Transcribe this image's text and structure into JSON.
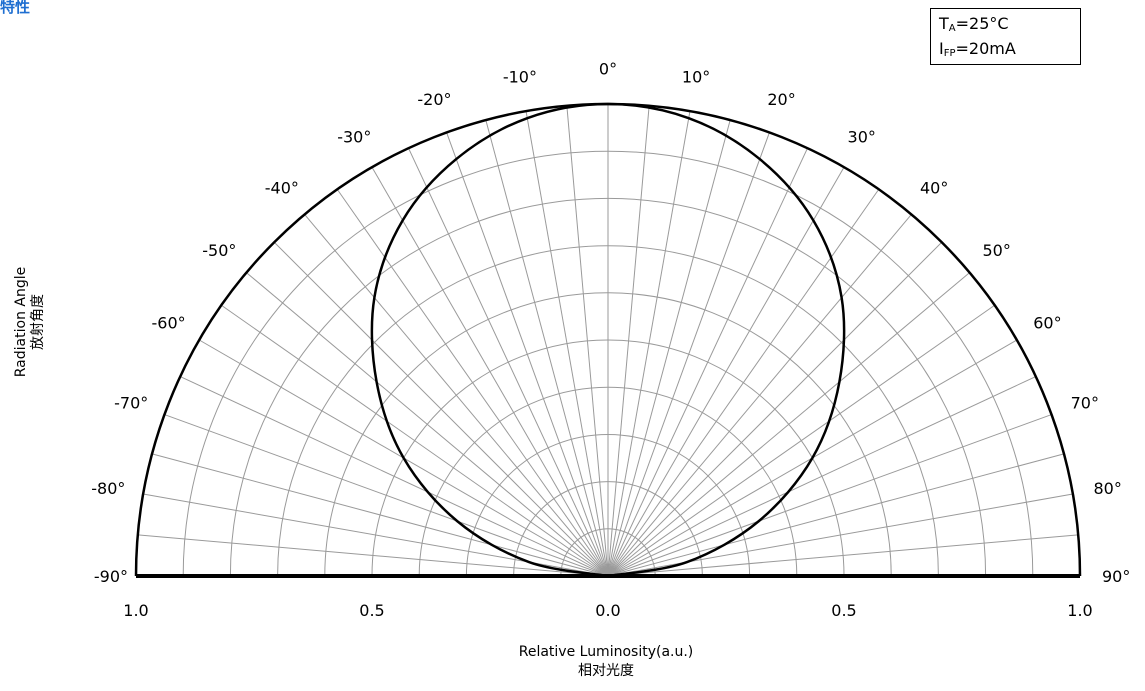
{
  "title": "特性",
  "conditions": {
    "ta_main": "T",
    "ta_sub": "A",
    "ta_value": "=25°C",
    "ifp_main": "I",
    "ifp_sub": "FP",
    "ifp_value": "=20mA"
  },
  "chart_data": {
    "type": "polar",
    "title": "",
    "subtitle": "",
    "y_title": "Radiation Angle",
    "y_title_cn": "放射角度",
    "x_title": "Relative Luminosity(a.u.)",
    "x_title_cn": "相对光度",
    "angle_range": [
      -90,
      90
    ],
    "angle_tick_step": 10,
    "angle_tick_labels": [
      "-90°",
      "-80°",
      "-70°",
      "-60°",
      "-50°",
      "-40°",
      "-30°",
      "-20°",
      "-10°",
      "0°",
      "10°",
      "20°",
      "30°",
      "40°",
      "50°",
      "60°",
      "70°",
      "80°",
      "90°"
    ],
    "radial_range": [
      0,
      1.0
    ],
    "radial_tick_labels": [
      "1.0",
      "0.5",
      "0.0",
      "0.5",
      "1.0"
    ],
    "radial_grid_step": 0.1,
    "angular_grid_step": 5,
    "grid": true,
    "series": [
      {
        "angles": [
          -90,
          -80,
          -70,
          -60,
          -50,
          -40,
          -30,
          -20,
          -10,
          0,
          10,
          20,
          30,
          40,
          50,
          60,
          70,
          80,
          90
        ],
        "values": [
          0.0,
          0.17,
          0.34,
          0.5,
          0.64,
          0.77,
          0.87,
          0.94,
          0.985,
          1.0,
          0.985,
          0.94,
          0.87,
          0.77,
          0.64,
          0.5,
          0.34,
          0.17,
          0.0
        ]
      }
    ],
    "colors": {
      "axis": "#000000",
      "grid": "#9a9a9a",
      "curve": "#000000",
      "title": "#1f6fd1"
    }
  }
}
